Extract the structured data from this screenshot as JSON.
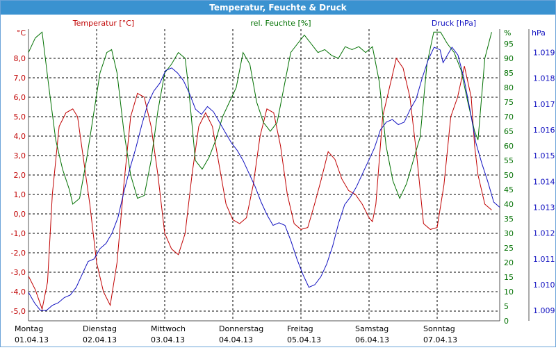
{
  "window": {
    "title": "Temperatur, Feuchte & Druck"
  },
  "chart_data": {
    "type": "line",
    "title": "Temperatur, Feuchte & Druck",
    "x_categories": [
      {
        "day": "Montag",
        "date": "01.04.13"
      },
      {
        "day": "Dienstag",
        "date": "02.04.13"
      },
      {
        "day": "Mittwoch",
        "date": "03.04.13"
      },
      {
        "day": "Donnerstag",
        "date": "04.04.13"
      },
      {
        "day": "Freitag",
        "date": "05.04.13"
      },
      {
        "day": "Samstag",
        "date": "06.04.13"
      },
      {
        "day": "Sonntag",
        "date": "07.04.13"
      }
    ],
    "x_range_days": [
      0,
      6.9
    ],
    "grid": true,
    "axes": {
      "temperature": {
        "label": "Temperatur [°C]",
        "unit": "°C",
        "range": [
          -5.5,
          9.5
        ],
        "ticks": [
          "-5,0",
          "-4,0",
          "-3,0",
          "-2,0",
          "-1,0",
          "0,0",
          "1,0",
          "2,0",
          "3,0",
          "4,0",
          "5,0",
          "6,0",
          "7,0",
          "8,0"
        ],
        "tick_values": [
          -5,
          -4,
          -3,
          -2,
          -1,
          0,
          1,
          2,
          3,
          4,
          5,
          6,
          7,
          8
        ],
        "position": "left",
        "color": "#c00000"
      },
      "humidity": {
        "label": "rel. Feuchte [%]",
        "unit": "%",
        "range": [
          0,
          100
        ],
        "ticks": [
          "0",
          "5",
          "10",
          "15",
          "20",
          "25",
          "30",
          "35",
          "40",
          "45",
          "50",
          "55",
          "60",
          "65",
          "70",
          "75",
          "80",
          "85",
          "90",
          "95"
        ],
        "tick_values": [
          0,
          5,
          10,
          15,
          20,
          25,
          30,
          35,
          40,
          45,
          50,
          55,
          60,
          65,
          70,
          75,
          80,
          85,
          90,
          95
        ],
        "position": "inner-right",
        "color": "#007000"
      },
      "pressure": {
        "label": "Druck [hPa]",
        "unit": "hPa",
        "range": [
          1008.6,
          1019.9
        ],
        "ticks": [
          "1.009",
          "1.010",
          "1.011",
          "1.012",
          "1.013",
          "1.014",
          "1.015",
          "1.016",
          "1.017",
          "1.018",
          "1.019"
        ],
        "tick_values": [
          1009,
          1010,
          1011,
          1012,
          1013,
          1014,
          1015,
          1016,
          1017,
          1018,
          1019
        ],
        "position": "right",
        "color": "#1010c0"
      }
    },
    "series": [
      {
        "name": "Temperatur [°C]",
        "axis": "temperature",
        "color": "#c00000",
        "points": [
          [
            0,
            -3.2
          ],
          [
            0.1,
            -3.9
          ],
          [
            0.2,
            -4.9
          ],
          [
            0.28,
            -3.5
          ],
          [
            0.35,
            1.0
          ],
          [
            0.45,
            4.5
          ],
          [
            0.55,
            5.2
          ],
          [
            0.65,
            5.4
          ],
          [
            0.72,
            5.0
          ],
          [
            0.8,
            3.0
          ],
          [
            0.9,
            0.5
          ],
          [
            1.0,
            -2.5
          ],
          [
            1.1,
            -4.0
          ],
          [
            1.2,
            -4.7
          ],
          [
            1.3,
            -2.5
          ],
          [
            1.4,
            1.5
          ],
          [
            1.5,
            5.0
          ],
          [
            1.6,
            6.2
          ],
          [
            1.7,
            6.0
          ],
          [
            1.8,
            4.5
          ],
          [
            1.9,
            2.0
          ],
          [
            2.0,
            -1.0
          ],
          [
            2.1,
            -1.8
          ],
          [
            2.2,
            -2.1
          ],
          [
            2.3,
            -1.0
          ],
          [
            2.4,
            2.0
          ],
          [
            2.5,
            4.5
          ],
          [
            2.6,
            5.2
          ],
          [
            2.7,
            4.5
          ],
          [
            2.8,
            2.5
          ],
          [
            2.9,
            0.5
          ],
          [
            3.0,
            -0.3
          ],
          [
            3.1,
            -0.5
          ],
          [
            3.2,
            -0.2
          ],
          [
            3.3,
            1.5
          ],
          [
            3.4,
            4.0
          ],
          [
            3.5,
            5.4
          ],
          [
            3.6,
            5.2
          ],
          [
            3.7,
            3.5
          ],
          [
            3.8,
            1.0
          ],
          [
            3.9,
            -0.5
          ],
          [
            4.0,
            -0.8
          ],
          [
            4.1,
            -0.7
          ],
          [
            4.2,
            0.5
          ],
          [
            4.3,
            1.8
          ],
          [
            4.4,
            3.2
          ],
          [
            4.5,
            2.8
          ],
          [
            4.6,
            1.8
          ],
          [
            4.7,
            1.2
          ],
          [
            4.8,
            1.0
          ],
          [
            4.9,
            0.5
          ],
          [
            5.0,
            -0.2
          ],
          [
            5.05,
            -0.4
          ],
          [
            5.1,
            0.5
          ],
          [
            5.2,
            5.0
          ],
          [
            5.3,
            6.5
          ],
          [
            5.4,
            8.0
          ],
          [
            5.5,
            7.5
          ],
          [
            5.6,
            6.0
          ],
          [
            5.7,
            3.0
          ],
          [
            5.8,
            -0.5
          ],
          [
            5.9,
            -0.8
          ],
          [
            6.0,
            -0.7
          ],
          [
            6.1,
            1.5
          ],
          [
            6.2,
            5.0
          ],
          [
            6.3,
            6.0
          ],
          [
            6.4,
            7.6
          ],
          [
            6.5,
            6.0
          ],
          [
            6.55,
            3.5
          ],
          [
            6.6,
            2.0
          ],
          [
            6.7,
            0.5
          ],
          [
            6.8,
            0.2
          ]
        ]
      },
      {
        "name": "rel. Feuchte [%]",
        "axis": "humidity",
        "color": "#007000",
        "points": [
          [
            0,
            92
          ],
          [
            0.1,
            97
          ],
          [
            0.2,
            99
          ],
          [
            0.3,
            80
          ],
          [
            0.4,
            62
          ],
          [
            0.5,
            52
          ],
          [
            0.6,
            45
          ],
          [
            0.65,
            40
          ],
          [
            0.75,
            42
          ],
          [
            0.85,
            55
          ],
          [
            0.95,
            70
          ],
          [
            1.05,
            85
          ],
          [
            1.15,
            92
          ],
          [
            1.22,
            93
          ],
          [
            1.3,
            85
          ],
          [
            1.4,
            65
          ],
          [
            1.5,
            50
          ],
          [
            1.6,
            42
          ],
          [
            1.7,
            43
          ],
          [
            1.8,
            55
          ],
          [
            1.9,
            72
          ],
          [
            2.0,
            85
          ],
          [
            2.1,
            88
          ],
          [
            2.2,
            92
          ],
          [
            2.3,
            90
          ],
          [
            2.35,
            80
          ],
          [
            2.45,
            55
          ],
          [
            2.55,
            52
          ],
          [
            2.65,
            56
          ],
          [
            2.75,
            62
          ],
          [
            2.85,
            70
          ],
          [
            2.95,
            75
          ],
          [
            3.05,
            80
          ],
          [
            3.15,
            92
          ],
          [
            3.25,
            88
          ],
          [
            3.35,
            75
          ],
          [
            3.45,
            68
          ],
          [
            3.55,
            65
          ],
          [
            3.65,
            68
          ],
          [
            3.75,
            80
          ],
          [
            3.85,
            92
          ],
          [
            3.95,
            95
          ],
          [
            4.05,
            98
          ],
          [
            4.15,
            95
          ],
          [
            4.25,
            92
          ],
          [
            4.35,
            93
          ],
          [
            4.45,
            91
          ],
          [
            4.55,
            90
          ],
          [
            4.65,
            94
          ],
          [
            4.75,
            93
          ],
          [
            4.85,
            94
          ],
          [
            4.95,
            92
          ],
          [
            5.05,
            94
          ],
          [
            5.15,
            82
          ],
          [
            5.25,
            60
          ],
          [
            5.35,
            48
          ],
          [
            5.45,
            42
          ],
          [
            5.55,
            47
          ],
          [
            5.65,
            55
          ],
          [
            5.75,
            63
          ],
          [
            5.85,
            88
          ],
          [
            5.95,
            99
          ],
          [
            6.05,
            99
          ],
          [
            6.15,
            95
          ],
          [
            6.25,
            92
          ],
          [
            6.35,
            86
          ],
          [
            6.45,
            75
          ],
          [
            6.55,
            65
          ],
          [
            6.6,
            62
          ],
          [
            6.7,
            90
          ],
          [
            6.8,
            99
          ]
        ]
      },
      {
        "name": "Druck [hPa]",
        "axis": "pressure",
        "color": "#1010c0",
        "points": [
          [
            0,
            1009.7
          ],
          [
            0.1,
            1009.3
          ],
          [
            0.2,
            1009.0
          ],
          [
            0.3,
            1009.0
          ],
          [
            0.4,
            1009.2
          ],
          [
            0.5,
            1009.3
          ],
          [
            0.6,
            1009.5
          ],
          [
            0.7,
            1009.6
          ],
          [
            0.8,
            1009.9
          ],
          [
            0.9,
            1010.4
          ],
          [
            1.0,
            1010.9
          ],
          [
            1.1,
            1011.0
          ],
          [
            1.2,
            1011.4
          ],
          [
            1.3,
            1011.6
          ],
          [
            1.4,
            1012.0
          ],
          [
            1.5,
            1012.6
          ],
          [
            1.6,
            1013.6
          ],
          [
            1.7,
            1014.5
          ],
          [
            1.8,
            1015.3
          ],
          [
            1.9,
            1016.2
          ],
          [
            2.0,
            1017.0
          ],
          [
            2.1,
            1017.5
          ],
          [
            2.2,
            1017.8
          ],
          [
            2.3,
            1018.3
          ],
          [
            2.4,
            1018.4
          ],
          [
            2.5,
            1018.2
          ],
          [
            2.6,
            1017.9
          ],
          [
            2.7,
            1017.4
          ],
          [
            2.8,
            1016.8
          ],
          [
            2.9,
            1016.6
          ],
          [
            3.0,
            1016.9
          ],
          [
            3.1,
            1016.7
          ],
          [
            3.2,
            1016.3
          ],
          [
            3.3,
            1015.9
          ],
          [
            3.4,
            1015.5
          ],
          [
            3.5,
            1015.2
          ],
          [
            3.6,
            1014.8
          ],
          [
            3.7,
            1014.3
          ],
          [
            3.8,
            1013.8
          ],
          [
            3.9,
            1013.2
          ],
          [
            4.0,
            1012.7
          ],
          [
            4.1,
            1012.3
          ],
          [
            4.2,
            1012.4
          ],
          [
            4.3,
            1012.3
          ],
          [
            4.4,
            1011.7
          ],
          [
            4.5,
            1011.0
          ],
          [
            4.6,
            1010.4
          ],
          [
            4.7,
            1009.9
          ],
          [
            4.8,
            1010.0
          ],
          [
            4.9,
            1010.3
          ],
          [
            5.0,
            1010.8
          ],
          [
            5.1,
            1011.5
          ],
          [
            5.2,
            1012.4
          ],
          [
            5.3,
            1013.1
          ],
          [
            5.4,
            1013.4
          ],
          [
            5.5,
            1013.8
          ],
          [
            5.6,
            1014.3
          ],
          [
            5.7,
            1014.8
          ],
          [
            5.8,
            1015.3
          ],
          [
            5.9,
            1016.0
          ],
          [
            6.0,
            1016.3
          ],
          [
            6.1,
            1016.4
          ],
          [
            6.2,
            1016.2
          ],
          [
            6.3,
            1016.3
          ],
          [
            6.4,
            1016.8
          ],
          [
            6.5,
            1017.2
          ],
          [
            6.6,
            1018.0
          ],
          [
            6.7,
            1018.7
          ],
          [
            6.8,
            1019.2
          ],
          [
            6.9,
            1019.1
          ],
          [
            6.95,
            1018.6
          ],
          [
            7.0,
            1018.8
          ],
          [
            7.1,
            1019.2
          ],
          [
            7.2,
            1018.9
          ],
          [
            7.3,
            1018.0
          ],
          [
            7.4,
            1016.8
          ],
          [
            7.5,
            1015.5
          ],
          [
            7.6,
            1014.7
          ],
          [
            7.7,
            1014.0
          ],
          [
            7.8,
            1013.2
          ],
          [
            7.9,
            1013.0
          ]
        ]
      }
    ]
  }
}
